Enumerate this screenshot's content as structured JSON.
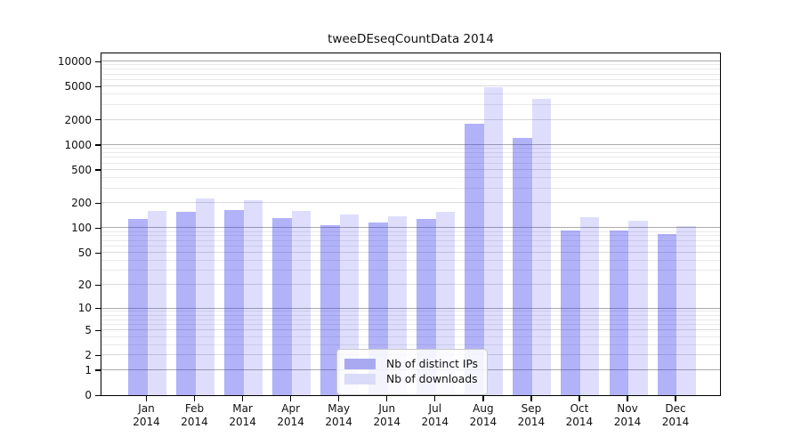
{
  "figure": {
    "title": "tweeDEseqCountData 2014"
  },
  "chart_data": {
    "type": "bar",
    "title": "tweeDEseqCountData 2014",
    "x_categories": [
      "Jan",
      "Feb",
      "Mar",
      "Apr",
      "May",
      "Jun",
      "Jul",
      "Aug",
      "Sep",
      "Oct",
      "Nov",
      "Dec"
    ],
    "x_sublabel": "2014",
    "series": [
      {
        "name": "Nb of distinct IPs",
        "values": [
          130,
          155,
          165,
          133,
          107,
          116,
          128,
          1800,
          1200,
          94,
          94,
          84
        ]
      },
      {
        "name": "Nb of downloads",
        "values": [
          160,
          225,
          215,
          160,
          147,
          140,
          155,
          4900,
          3600,
          134,
          123,
          105
        ]
      }
    ],
    "y_ticks": [
      0,
      1,
      2,
      5,
      10,
      20,
      50,
      100,
      200,
      500,
      1000,
      2000,
      5000,
      10000
    ],
    "y_scale": "log1p",
    "ylim": [
      0,
      10000
    ],
    "grid": true,
    "legend": {
      "position": "bottom-center",
      "labels": [
        "Nb of distinct IPs",
        "Nb of downloads"
      ]
    },
    "colors": {
      "series1_bar": "rgba(45,45,235,0.37)",
      "series2_bar": "rgba(45,45,235,0.155)",
      "series1_swatch": "#a9a9f2",
      "series2_swatch": "#dadaf9",
      "grid_major": "#ababab",
      "grid_sub": "#d9d9d9",
      "grid_minor": "#e9e9e9",
      "axis": "#000000"
    }
  }
}
